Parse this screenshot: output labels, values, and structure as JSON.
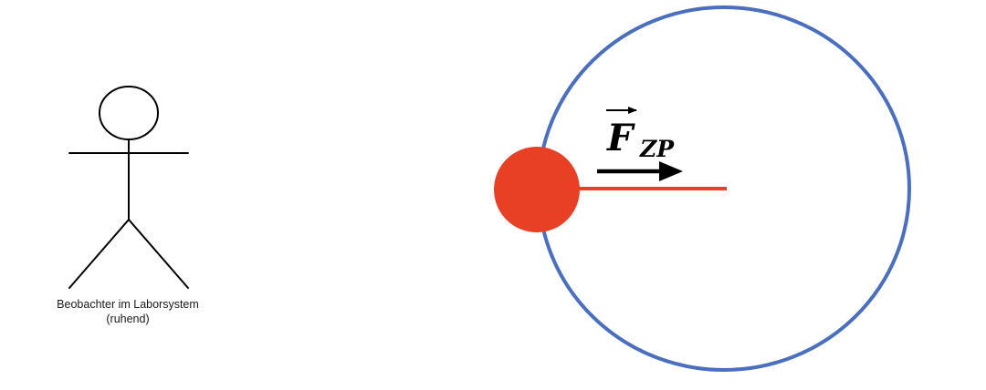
{
  "observer": {
    "caption_line1": "Beobachter im Laborsystem",
    "caption_line2": "(ruhend)"
  },
  "force_label": {
    "symbol": "F",
    "subscript": "ZP"
  },
  "colors": {
    "orbit": "#4a6fbe",
    "mass": "#e84025",
    "rope": "#e84025",
    "figure": "#000000",
    "arrow": "#000000"
  }
}
